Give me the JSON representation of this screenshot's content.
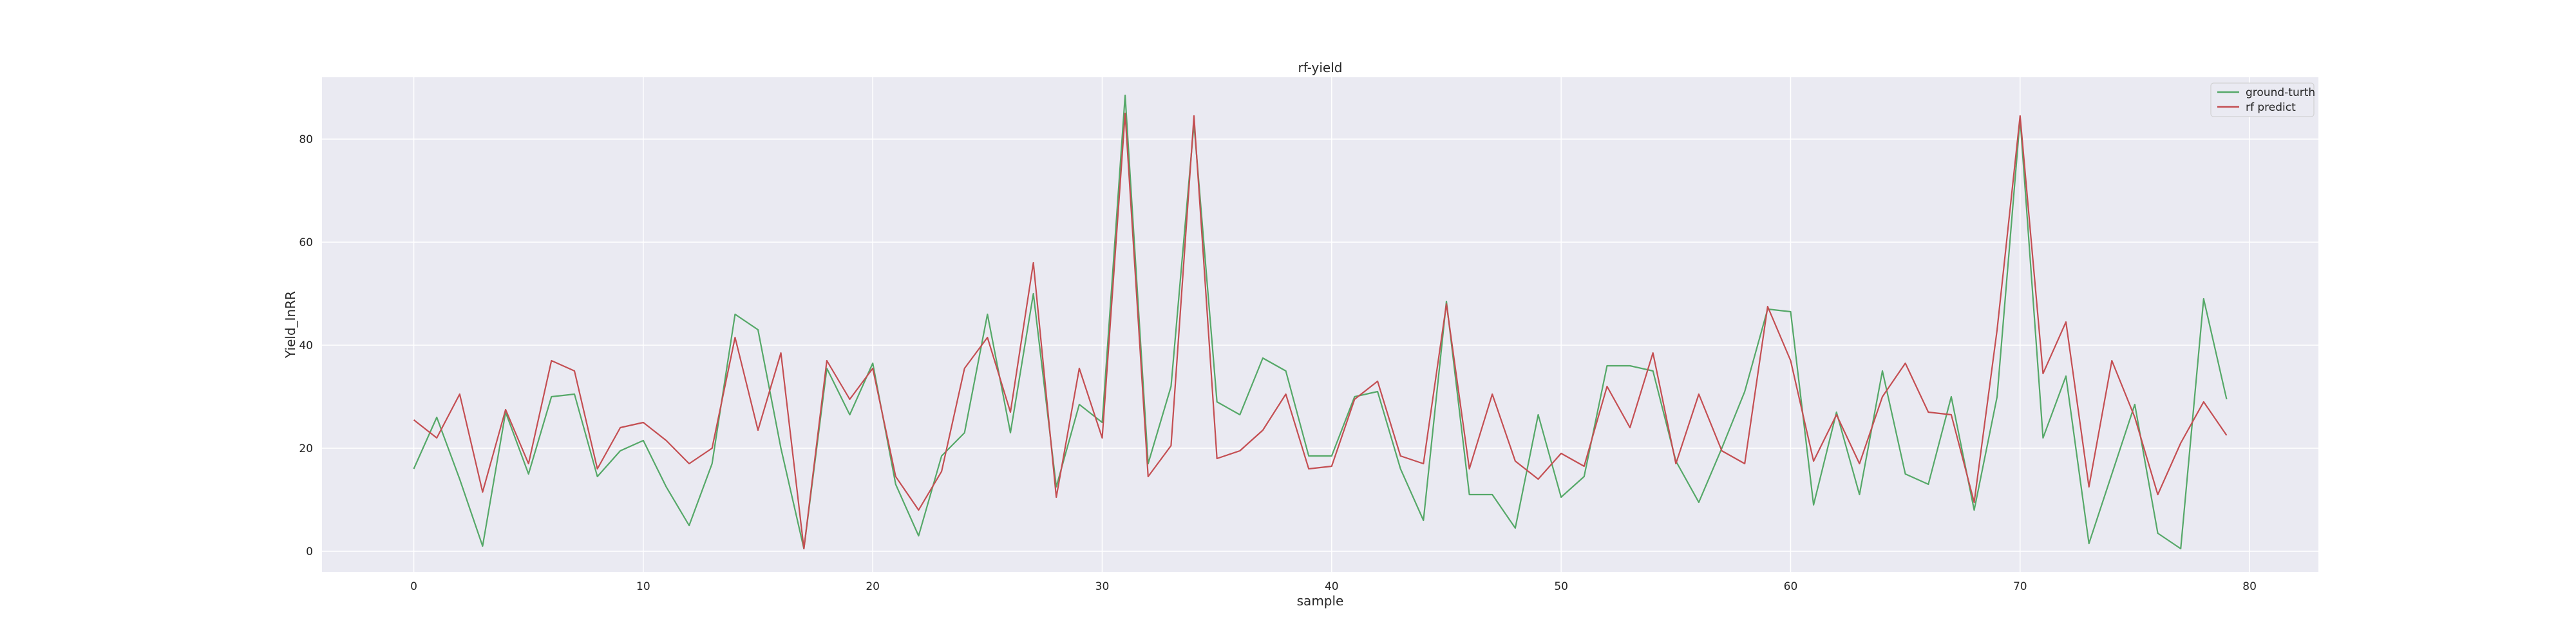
{
  "chart_data": {
    "type": "line",
    "title": "rf-yield",
    "xlabel": "sample",
    "ylabel": "Yield_InRR",
    "xlim": [
      -4,
      83
    ],
    "ylim": [
      -4,
      92
    ],
    "xticks": [
      0,
      10,
      20,
      30,
      40,
      50,
      60,
      70,
      80
    ],
    "yticks": [
      0,
      20,
      40,
      60,
      80
    ],
    "grid": true,
    "legend_position": "top-right",
    "x": [
      0,
      1,
      2,
      3,
      4,
      5,
      6,
      7,
      8,
      9,
      10,
      11,
      12,
      13,
      14,
      15,
      16,
      17,
      18,
      19,
      20,
      21,
      22,
      23,
      24,
      25,
      26,
      27,
      28,
      29,
      30,
      31,
      32,
      33,
      34,
      35,
      36,
      37,
      38,
      39,
      40,
      41,
      42,
      43,
      44,
      45,
      46,
      47,
      48,
      49,
      50,
      51,
      52,
      53,
      54,
      55,
      56,
      57,
      58,
      59,
      60,
      61,
      62,
      63,
      64,
      65,
      66,
      67,
      68,
      69,
      70,
      71,
      72,
      73,
      74,
      75,
      76,
      77,
      78,
      79
    ],
    "series": [
      {
        "name": "ground-turth",
        "color": "#55a868",
        "values": [
          16,
          26,
          14,
          1,
          27,
          15,
          30,
          30.5,
          14.5,
          19.5,
          21.5,
          12.5,
          5,
          17,
          46,
          43,
          20,
          0.5,
          35.5,
          26.5,
          36.5,
          13,
          3,
          18.5,
          23,
          46,
          23,
          50,
          12.5,
          28.5,
          25,
          88.5,
          17,
          32,
          83,
          29,
          26.5,
          37.5,
          35,
          18.5,
          18.5,
          30,
          31,
          16,
          6,
          48.5,
          11,
          11,
          4.5,
          26.5,
          10.5,
          14.5,
          36,
          36,
          35,
          17.5,
          9.5,
          20,
          31,
          47,
          46.5,
          9,
          27,
          11,
          35,
          15,
          13,
          30,
          8,
          30,
          84,
          22,
          34,
          1.5,
          15,
          28.5,
          3.5,
          0.5,
          49,
          29.5
        ]
      },
      {
        "name": "rf predict",
        "color": "#c44e52",
        "values": [
          25.5,
          22,
          30.5,
          11.5,
          27.5,
          17,
          37,
          35,
          16,
          24,
          25,
          21.5,
          17,
          20,
          41.5,
          23.5,
          38.5,
          0.5,
          37,
          29.5,
          35.5,
          14.5,
          8,
          15.5,
          35.5,
          41.5,
          27,
          56,
          10.5,
          35.5,
          22,
          85,
          14.5,
          20.5,
          84.5,
          18,
          19.5,
          23.5,
          30.5,
          16,
          16.5,
          29.5,
          33,
          18.5,
          17,
          48,
          16,
          30.5,
          17.5,
          14,
          19,
          16.5,
          32,
          24,
          38.5,
          17,
          30.5,
          19.5,
          17,
          47.5,
          37,
          17.5,
          26.5,
          17,
          30,
          36.5,
          27,
          26.5,
          9.5,
          43,
          84.5,
          34.5,
          44.5,
          12.5,
          37,
          26,
          11,
          21,
          29,
          22.5
        ]
      }
    ]
  }
}
